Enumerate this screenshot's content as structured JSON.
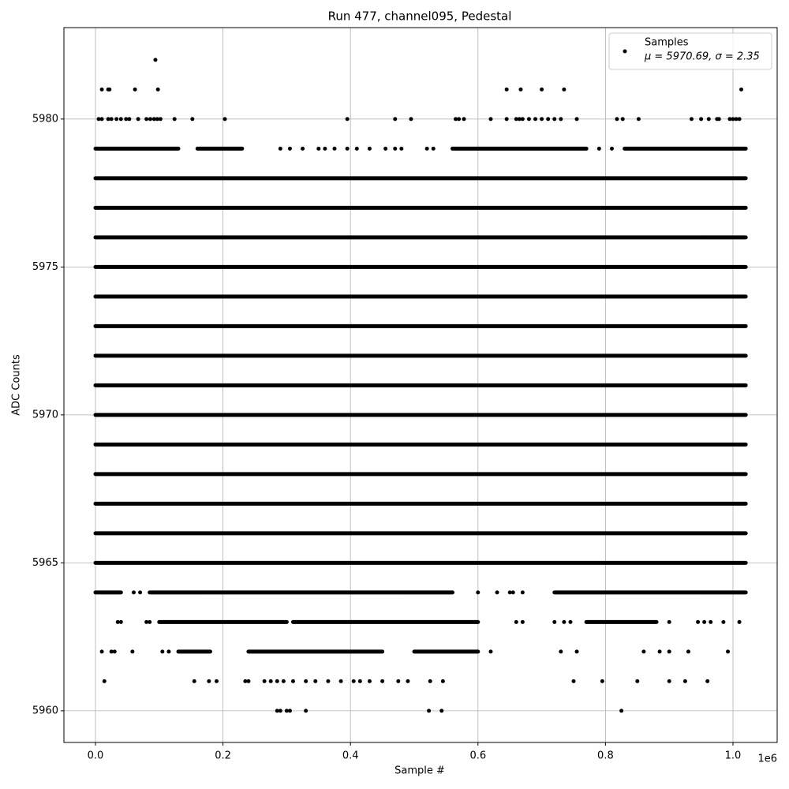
{
  "chart_data": {
    "type": "scatter",
    "title": "Run 477, channel095, Pedestal",
    "xlabel": "Sample #",
    "ylabel": "ADC Counts",
    "x_offset_label": "1e6",
    "xlim": [
      -49500,
      1069300
    ],
    "ylim": [
      5958.93,
      5983.09
    ],
    "xticks": [
      {
        "value": 0,
        "label": "0.0"
      },
      {
        "value": 200000,
        "label": "0.2"
      },
      {
        "value": 400000,
        "label": "0.4"
      },
      {
        "value": 600000,
        "label": "0.6"
      },
      {
        "value": 800000,
        "label": "0.8"
      },
      {
        "value": 1000000,
        "label": "1.0"
      }
    ],
    "yticks": [
      5960,
      5965,
      5970,
      5975,
      5980
    ],
    "grid": true,
    "legend": "upper right",
    "series": [
      {
        "name": "Samples",
        "legend_note": "μ = 5970.69, σ = 2.35",
        "color": "#000000",
        "runs": [
          {
            "y": 5965,
            "x": [
              0,
              1020000
            ]
          },
          {
            "y": 5966,
            "x": [
              0,
              1020000
            ]
          },
          {
            "y": 5967,
            "x": [
              0,
              1020000
            ]
          },
          {
            "y": 5968,
            "x": [
              0,
              1020000
            ]
          },
          {
            "y": 5969,
            "x": [
              0,
              1020000
            ]
          },
          {
            "y": 5970,
            "x": [
              0,
              1020000
            ]
          },
          {
            "y": 5971,
            "x": [
              0,
              1020000
            ]
          },
          {
            "y": 5972,
            "x": [
              0,
              1020000
            ]
          },
          {
            "y": 5973,
            "x": [
              0,
              1020000
            ]
          },
          {
            "y": 5974,
            "x": [
              0,
              1020000
            ]
          },
          {
            "y": 5975,
            "x": [
              0,
              1020000
            ]
          },
          {
            "y": 5976,
            "x": [
              0,
              1020000
            ]
          },
          {
            "y": 5977,
            "x": [
              0,
              1020000
            ]
          },
          {
            "y": 5978,
            "x": [
              0,
              1020000
            ]
          },
          {
            "y": 5979,
            "x": [
              0,
              130000
            ]
          },
          {
            "y": 5979,
            "x": [
              160000,
              230000
            ]
          },
          {
            "y": 5979,
            "x": [
              560000,
              770000
            ]
          },
          {
            "y": 5979,
            "x": [
              830000,
              1020000
            ]
          },
          {
            "y": 5964,
            "x": [
              0,
              40000
            ]
          },
          {
            "y": 5964,
            "x": [
              85000,
              560000
            ]
          },
          {
            "y": 5964,
            "x": [
              720000,
              1020000
            ]
          },
          {
            "y": 5963,
            "x": [
              100000,
              300000
            ]
          },
          {
            "y": 5963,
            "x": [
              310000,
              600000
            ]
          },
          {
            "y": 5963,
            "x": [
              770000,
              880000
            ]
          },
          {
            "y": 5962,
            "x": [
              130000,
              180000
            ]
          },
          {
            "y": 5962,
            "x": [
              240000,
              450000
            ]
          },
          {
            "y": 5962,
            "x": [
              500000,
              600000
            ]
          }
        ],
        "x": [
          94000,
          10000,
          20000,
          22000,
          62000,
          98000,
          645000,
          667000,
          700000,
          735000,
          1013000,
          5000,
          10000,
          20000,
          25000,
          33000,
          40000,
          48000,
          53000,
          67000,
          80000,
          86000,
          92000,
          97000,
          102000,
          124000,
          152000,
          203000,
          395000,
          470000,
          495000,
          565000,
          570000,
          578000,
          620000,
          645000,
          660000,
          665000,
          670000,
          680000,
          690000,
          700000,
          710000,
          720000,
          730000,
          755000,
          818000,
          827000,
          852000,
          935000,
          950000,
          962000,
          975000,
          978000,
          995000,
          1000000,
          1005000,
          1010000,
          290000,
          305000,
          325000,
          350000,
          360000,
          375000,
          395000,
          410000,
          430000,
          455000,
          470000,
          480000,
          520000,
          530000,
          790000,
          810000,
          60000,
          70000,
          600000,
          630000,
          650000,
          655000,
          670000,
          35000,
          40000,
          80000,
          85000,
          660000,
          670000,
          720000,
          735000,
          745000,
          900000,
          945000,
          955000,
          965000,
          985000,
          1010000,
          10000,
          25000,
          30000,
          58000,
          105000,
          115000,
          620000,
          730000,
          755000,
          860000,
          885000,
          900000,
          930000,
          992000,
          14000,
          155000,
          178000,
          190000,
          235000,
          240000,
          265000,
          275000,
          285000,
          295000,
          310000,
          330000,
          345000,
          365000,
          385000,
          405000,
          415000,
          430000,
          450000,
          475000,
          490000,
          525000,
          545000,
          750000,
          795000,
          850000,
          900000,
          925000,
          960000,
          285000,
          290000,
          300000,
          305000,
          330000,
          523000,
          543000,
          825000
        ],
        "y": [
          5982,
          5981,
          5981,
          5981,
          5981,
          5981,
          5981,
          5981,
          5981,
          5981,
          5981,
          5980,
          5980,
          5980,
          5980,
          5980,
          5980,
          5980,
          5980,
          5980,
          5980,
          5980,
          5980,
          5980,
          5980,
          5980,
          5980,
          5980,
          5980,
          5980,
          5980,
          5980,
          5980,
          5980,
          5980,
          5980,
          5980,
          5980,
          5980,
          5980,
          5980,
          5980,
          5980,
          5980,
          5980,
          5980,
          5980,
          5980,
          5980,
          5980,
          5980,
          5980,
          5980,
          5980,
          5980,
          5980,
          5980,
          5980,
          5979,
          5979,
          5979,
          5979,
          5979,
          5979,
          5979,
          5979,
          5979,
          5979,
          5979,
          5979,
          5979,
          5979,
          5979,
          5979,
          5964,
          5964,
          5964,
          5964,
          5964,
          5964,
          5964,
          5963,
          5963,
          5963,
          5963,
          5963,
          5963,
          5963,
          5963,
          5963,
          5963,
          5963,
          5963,
          5963,
          5963,
          5963,
          5962,
          5962,
          5962,
          5962,
          5962,
          5962,
          5962,
          5962,
          5962,
          5962,
          5962,
          5962,
          5962,
          5962,
          5961,
          5961,
          5961,
          5961,
          5961,
          5961,
          5961,
          5961,
          5961,
          5961,
          5961,
          5961,
          5961,
          5961,
          5961,
          5961,
          5961,
          5961,
          5961,
          5961,
          5961,
          5961,
          5961,
          5961,
          5961,
          5961,
          5961,
          5961,
          5961,
          5960,
          5960,
          5960,
          5960,
          5960,
          5960,
          5960,
          5960
        ]
      }
    ]
  }
}
